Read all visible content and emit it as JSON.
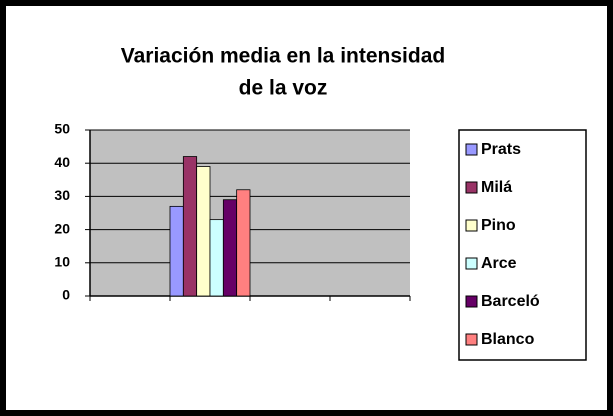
{
  "chart_data": {
    "type": "bar",
    "title": [
      "Variación media en la intensidad",
      "de la voz"
    ],
    "categories": [
      null,
      null,
      null,
      null
    ],
    "series": [
      {
        "name": "Prats",
        "color": "#9999ff",
        "values": [
          null,
          27,
          null,
          null
        ]
      },
      {
        "name": "Milá",
        "color": "#993366",
        "values": [
          null,
          42,
          null,
          null
        ]
      },
      {
        "name": "Pino",
        "color": "#ffffcc",
        "values": [
          null,
          39,
          null,
          null
        ]
      },
      {
        "name": "Arce",
        "color": "#ccffff",
        "values": [
          null,
          23,
          null,
          null
        ]
      },
      {
        "name": "Barceló",
        "color": "#660066",
        "values": [
          null,
          29,
          null,
          null
        ]
      },
      {
        "name": "Blanco",
        "color": "#ff8080",
        "values": [
          null,
          32,
          null,
          null
        ]
      }
    ],
    "ylim": [
      0,
      50
    ],
    "yticks": [
      0,
      10,
      20,
      30,
      40,
      50
    ],
    "grid": true,
    "legend": "right"
  }
}
